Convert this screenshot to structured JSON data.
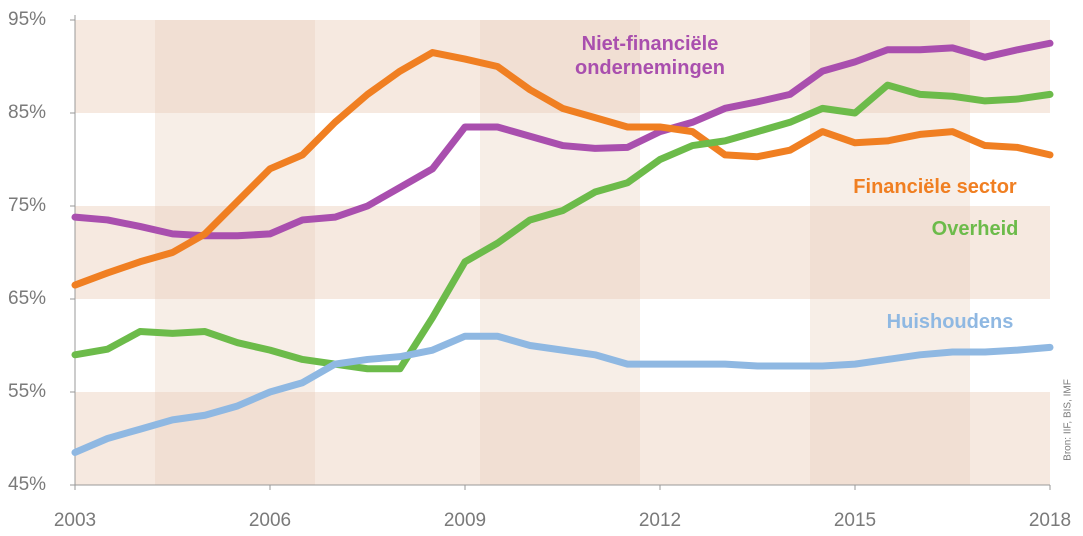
{
  "chart_data": {
    "type": "line",
    "x": [
      2003,
      2003.5,
      2004,
      2004.5,
      2005,
      2005.5,
      2006,
      2006.5,
      2007,
      2007.5,
      2008,
      2008.5,
      2009,
      2009.5,
      2010,
      2010.5,
      2011,
      2011.5,
      2012,
      2012.5,
      2013,
      2013.5,
      2014,
      2014.5,
      2015,
      2015.5,
      2016,
      2016.5,
      2017,
      2017.5,
      2018
    ],
    "series": [
      {
        "name": "Niet-financiële ondernemingen",
        "color": "#a94fae",
        "values": [
          73.8,
          73.5,
          72.8,
          72,
          71.8,
          71.8,
          72,
          73.5,
          73.8,
          75,
          77,
          79,
          83.5,
          83.5,
          82.5,
          81.5,
          81.2,
          81.3,
          83,
          84,
          85.5,
          86.2,
          87,
          89.5,
          90.5,
          91.8,
          91.8,
          92,
          91,
          91.8,
          92.5
        ]
      },
      {
        "name": "Financiële sector",
        "color": "#f07f22",
        "values": [
          66.5,
          67.8,
          69,
          70,
          72,
          75.5,
          79,
          80.5,
          84,
          87,
          89.5,
          91.5,
          90.8,
          90,
          87.5,
          85.5,
          84.5,
          83.5,
          83.5,
          83,
          80.5,
          80.3,
          81,
          83,
          81.8,
          82,
          82.7,
          83,
          81.5,
          81.3,
          80.5
        ]
      },
      {
        "name": "Overheid",
        "color": "#6cbb4a",
        "values": [
          59,
          59.6,
          61.5,
          61.3,
          61.5,
          60.3,
          59.5,
          58.5,
          58,
          57.5,
          57.5,
          63,
          69,
          71,
          73.5,
          74.5,
          76.5,
          77.5,
          80,
          81.5,
          82,
          83,
          84,
          85.5,
          85,
          88,
          87,
          86.8,
          86.3,
          86.5,
          87
        ]
      },
      {
        "name": "Huishoudens",
        "color": "#8fb8e2",
        "values": [
          48.5,
          50,
          51,
          52,
          52.5,
          53.5,
          55,
          56,
          58,
          58.5,
          58.8,
          59.5,
          61,
          61,
          60,
          59.5,
          59,
          58,
          58,
          58,
          58,
          57.8,
          57.8,
          57.8,
          58,
          58.5,
          59,
          59.3,
          59.3,
          59.5,
          59.8
        ]
      }
    ],
    "xlim": [
      2003,
      2018
    ],
    "xticks": [
      2003,
      2006,
      2009,
      2012,
      2015,
      2018
    ],
    "ylim": [
      45,
      95
    ],
    "yticks": [
      {
        "value": 45,
        "label": "45%"
      },
      {
        "value": 55,
        "label": "55%"
      },
      {
        "value": 65,
        "label": "65%"
      },
      {
        "value": 75,
        "label": "75%"
      },
      {
        "value": 85,
        "label": "85%"
      },
      {
        "value": 95,
        "label": "95%"
      }
    ],
    "source": "Bron: IIF, BIS, IMF"
  }
}
